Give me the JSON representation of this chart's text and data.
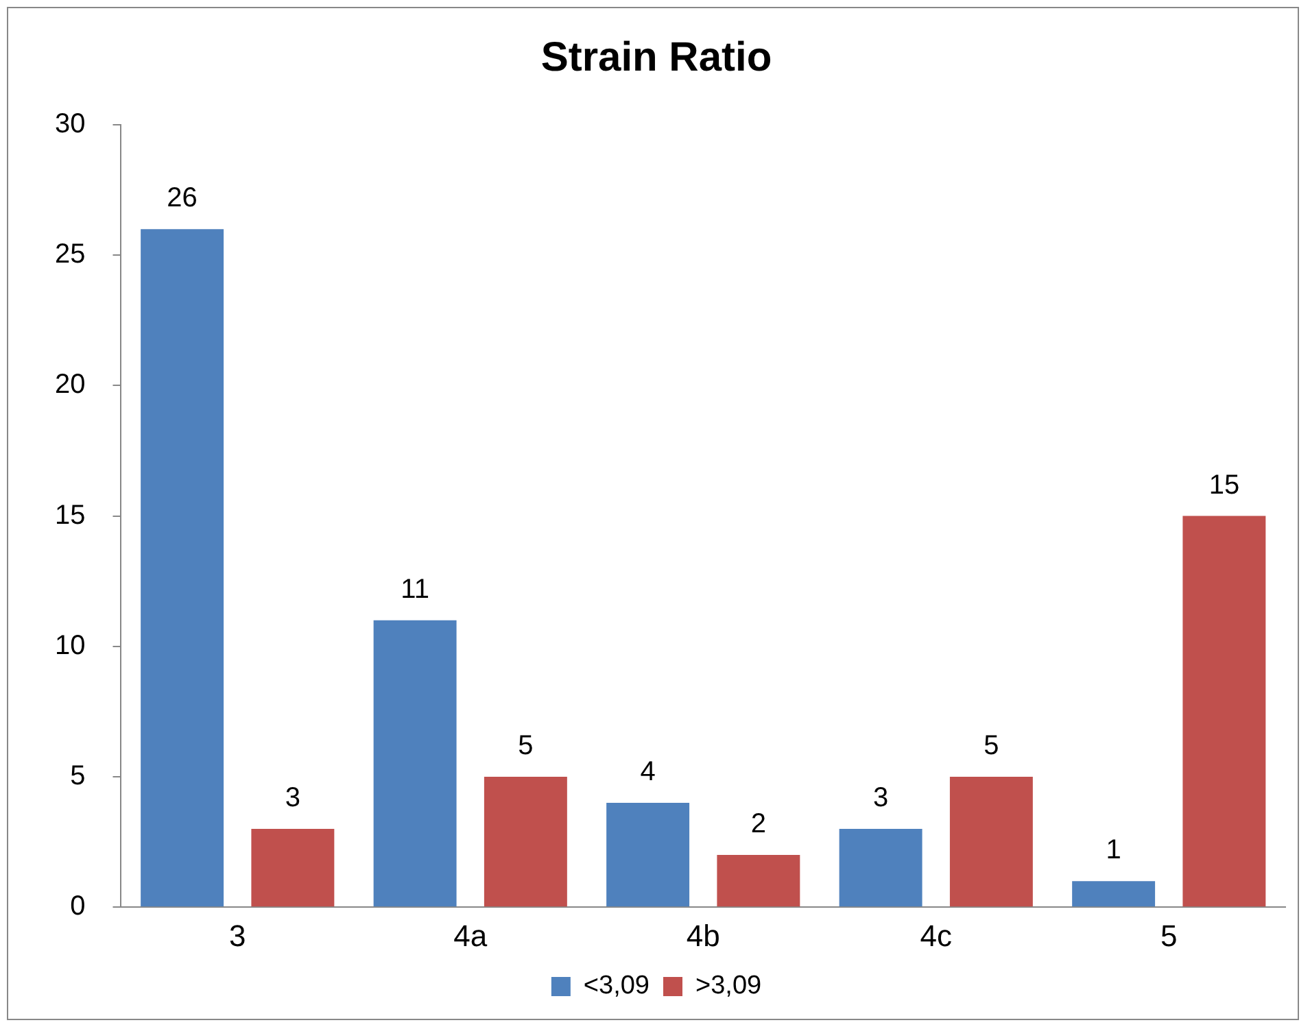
{
  "chart_data": {
    "type": "bar",
    "title": "Strain Ratio",
    "categories": [
      "3",
      "4a",
      "4b",
      "4c",
      "5"
    ],
    "series": [
      {
        "name": "<3,09",
        "color": "#4f81bd",
        "values": [
          26,
          11,
          4,
          3,
          1
        ]
      },
      {
        "name": ">3,09",
        "color": "#c0504d",
        "values": [
          3,
          5,
          2,
          5,
          15
        ]
      }
    ],
    "ylim": [
      0,
      30
    ],
    "yticks": [
      0,
      5,
      10,
      15,
      20,
      25,
      30
    ],
    "grid": false,
    "legend": "bottom",
    "data_labels": true
  }
}
